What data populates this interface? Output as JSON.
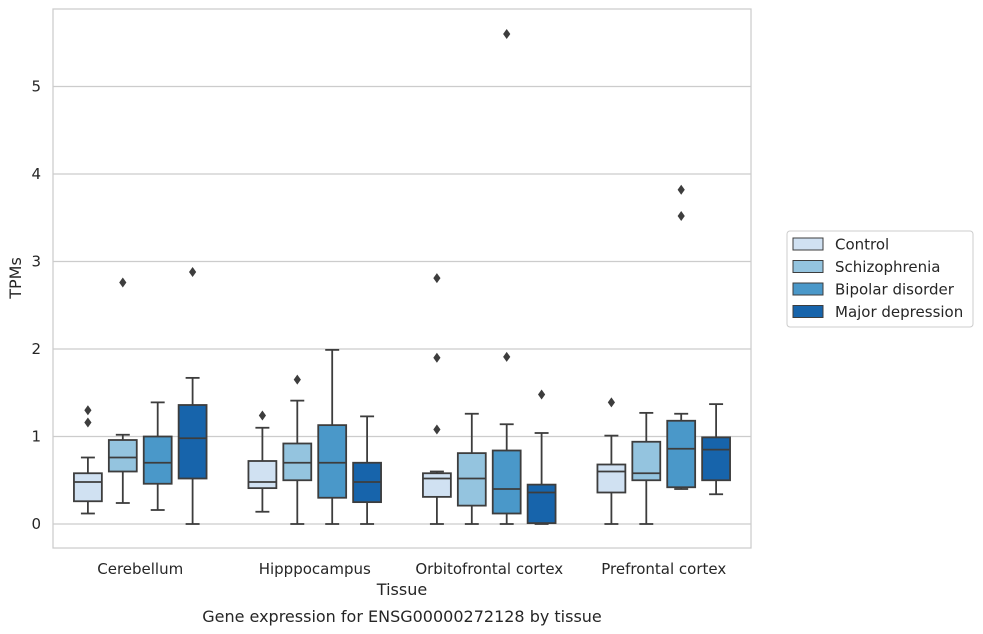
{
  "chart_data": {
    "type": "boxplot",
    "xlabel": "Tissue",
    "ylabel": "TPMs",
    "caption": "Gene expression for ENSG00000272128 by tissue",
    "ylim": [
      -0.27,
      5.88
    ],
    "yticks": [
      0,
      1,
      2,
      3,
      4,
      5
    ],
    "grid": "horizontal",
    "legend_position": "right",
    "categories": [
      "Cerebellum",
      "Hipppocampus",
      "Orbitofrontal cortex",
      "Prefrontal cortex"
    ],
    "series": [
      {
        "name": "Control",
        "color": "#d0e1f2",
        "boxes": [
          {
            "whisker_low": 0.12,
            "q1": 0.26,
            "median": 0.48,
            "q3": 0.58,
            "whisker_high": 0.76,
            "outliers": [
              1.16,
              1.3
            ]
          },
          {
            "whisker_low": 0.14,
            "q1": 0.41,
            "median": 0.48,
            "q3": 0.72,
            "whisker_high": 1.1,
            "outliers": [
              1.24
            ]
          },
          {
            "whisker_low": 0.0,
            "q1": 0.31,
            "median": 0.52,
            "q3": 0.58,
            "whisker_high": 0.6,
            "outliers": [
              1.08,
              1.9,
              2.81
            ]
          },
          {
            "whisker_low": 0.0,
            "q1": 0.36,
            "median": 0.6,
            "q3": 0.68,
            "whisker_high": 1.01,
            "outliers": [
              1.39
            ]
          }
        ]
      },
      {
        "name": "Schizophrenia",
        "color": "#94c4df",
        "boxes": [
          {
            "whisker_low": 0.24,
            "q1": 0.6,
            "median": 0.76,
            "q3": 0.96,
            "whisker_high": 1.02,
            "outliers": [
              2.76
            ]
          },
          {
            "whisker_low": 0.0,
            "q1": 0.5,
            "median": 0.7,
            "q3": 0.92,
            "whisker_high": 1.41,
            "outliers": [
              1.65
            ]
          },
          {
            "whisker_low": 0.0,
            "q1": 0.21,
            "median": 0.52,
            "q3": 0.81,
            "whisker_high": 1.26,
            "outliers": []
          },
          {
            "whisker_low": 0.0,
            "q1": 0.5,
            "median": 0.58,
            "q3": 0.94,
            "whisker_high": 1.27,
            "outliers": []
          }
        ]
      },
      {
        "name": "Bipolar disorder",
        "color": "#4a98c9",
        "boxes": [
          {
            "whisker_low": 0.16,
            "q1": 0.46,
            "median": 0.7,
            "q3": 1.0,
            "whisker_high": 1.39,
            "outliers": []
          },
          {
            "whisker_low": 0.0,
            "q1": 0.3,
            "median": 0.7,
            "q3": 1.13,
            "whisker_high": 1.99,
            "outliers": []
          },
          {
            "whisker_low": 0.0,
            "q1": 0.12,
            "median": 0.4,
            "q3": 0.84,
            "whisker_high": 1.14,
            "outliers": [
              1.91,
              5.6
            ]
          },
          {
            "whisker_low": 0.4,
            "q1": 0.42,
            "median": 0.86,
            "q3": 1.18,
            "whisker_high": 1.26,
            "outliers": [
              3.52,
              3.82
            ]
          }
        ]
      },
      {
        "name": "Major depression",
        "color": "#1764ab",
        "boxes": [
          {
            "whisker_low": 0.0,
            "q1": 0.52,
            "median": 0.98,
            "q3": 1.36,
            "whisker_high": 1.67,
            "outliers": [
              2.88
            ]
          },
          {
            "whisker_low": 0.0,
            "q1": 0.25,
            "median": 0.48,
            "q3": 0.7,
            "whisker_high": 1.23,
            "outliers": []
          },
          {
            "whisker_low": 0.0,
            "q1": 0.01,
            "median": 0.36,
            "q3": 0.45,
            "whisker_high": 1.04,
            "outliers": [
              1.48
            ]
          },
          {
            "whisker_low": 0.34,
            "q1": 0.5,
            "median": 0.85,
            "q3": 0.99,
            "whisker_high": 1.37,
            "outliers": []
          }
        ]
      }
    ]
  }
}
